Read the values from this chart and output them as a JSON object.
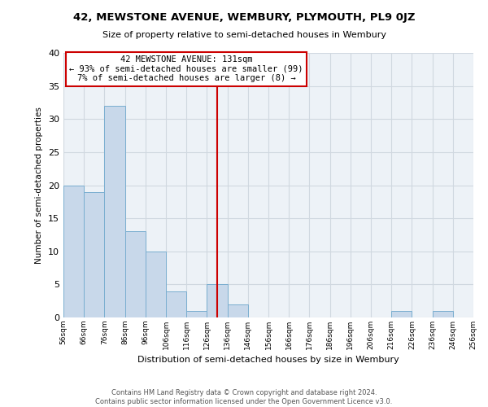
{
  "title": "42, MEWSTONE AVENUE, WEMBURY, PLYMOUTH, PL9 0JZ",
  "subtitle": "Size of property relative to semi-detached houses in Wembury",
  "xlabel": "Distribution of semi-detached houses by size in Wembury",
  "ylabel": "Number of semi-detached properties",
  "bin_edges": [
    56,
    66,
    76,
    86,
    96,
    106,
    116,
    126,
    136,
    146,
    156,
    166,
    176,
    186,
    196,
    206,
    216,
    226,
    236,
    246,
    256
  ],
  "bin_counts": [
    20,
    19,
    32,
    13,
    10,
    4,
    1,
    5,
    2,
    0,
    0,
    0,
    0,
    0,
    0,
    0,
    1,
    0,
    1,
    0
  ],
  "bar_facecolor": "#c8d8ea",
  "bar_edgecolor": "#7aaed0",
  "vline_x": 131,
  "vline_color": "#cc0000",
  "annotation_box_text": "42 MEWSTONE AVENUE: 131sqm\n← 93% of semi-detached houses are smaller (99)\n7% of semi-detached houses are larger (8) →",
  "annotation_box_edgecolor": "#cc0000",
  "annotation_box_facecolor": "#ffffff",
  "ylim": [
    0,
    40
  ],
  "yticks": [
    0,
    5,
    10,
    15,
    20,
    25,
    30,
    35,
    40
  ],
  "grid_color": "#d0d8e0",
  "background_color": "#edf2f7",
  "footer_text": "Contains HM Land Registry data © Crown copyright and database right 2024.\nContains public sector information licensed under the Open Government Licence v3.0.",
  "tick_labels": [
    "56sqm",
    "66sqm",
    "76sqm",
    "86sqm",
    "96sqm",
    "106sqm",
    "116sqm",
    "126sqm",
    "136sqm",
    "146sqm",
    "156sqm",
    "166sqm",
    "176sqm",
    "186sqm",
    "196sqm",
    "206sqm",
    "216sqm",
    "226sqm",
    "236sqm",
    "246sqm",
    "256sqm"
  ]
}
